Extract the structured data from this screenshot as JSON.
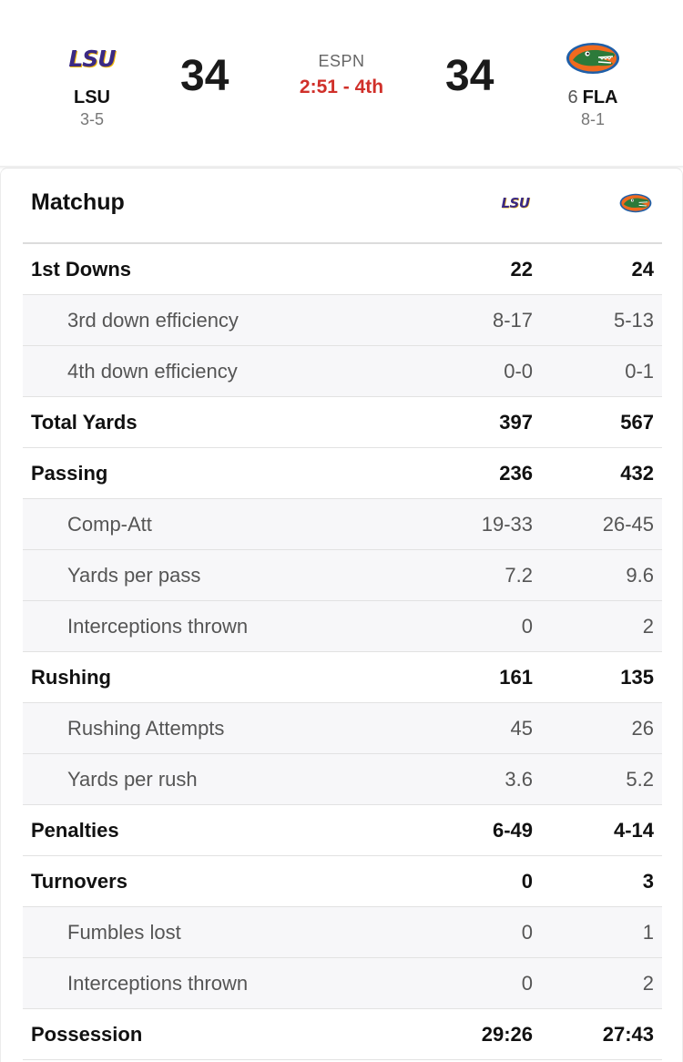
{
  "scoreboard": {
    "away": {
      "logo_text": "LSU",
      "name": "LSU",
      "record": "3-5",
      "score": "34",
      "icon": "lsu-logo"
    },
    "home": {
      "logo_text": "",
      "rank": "6",
      "name": "FLA",
      "record": "8-1",
      "score": "34",
      "icon": "gator-logo"
    },
    "network": "ESPN",
    "clock": "2:51 - 4th",
    "colors": {
      "clock": "#d0302a",
      "lsu_purple": "#3b2a83",
      "lsu_gold": "#f2b705",
      "gator_orange": "#f06a1e",
      "gator_blue": "#1f5fa8"
    }
  },
  "matchup": {
    "title": "Matchup",
    "away_logo_text": "LSU",
    "rows": [
      {
        "label": "1st Downs",
        "away": "22",
        "home": "24",
        "sub": false
      },
      {
        "label": "3rd down efficiency",
        "away": "8-17",
        "home": "5-13",
        "sub": true
      },
      {
        "label": "4th down efficiency",
        "away": "0-0",
        "home": "0-1",
        "sub": true
      },
      {
        "label": "Total Yards",
        "away": "397",
        "home": "567",
        "sub": false
      },
      {
        "label": "Passing",
        "away": "236",
        "home": "432",
        "sub": false
      },
      {
        "label": "Comp-Att",
        "away": "19-33",
        "home": "26-45",
        "sub": true
      },
      {
        "label": "Yards per pass",
        "away": "7.2",
        "home": "9.6",
        "sub": true
      },
      {
        "label": "Interceptions thrown",
        "away": "0",
        "home": "2",
        "sub": true
      },
      {
        "label": "Rushing",
        "away": "161",
        "home": "135",
        "sub": false
      },
      {
        "label": "Rushing Attempts",
        "away": "45",
        "home": "26",
        "sub": true
      },
      {
        "label": "Yards per rush",
        "away": "3.6",
        "home": "5.2",
        "sub": true
      },
      {
        "label": "Penalties",
        "away": "6-49",
        "home": "4-14",
        "sub": false
      },
      {
        "label": "Turnovers",
        "away": "0",
        "home": "3",
        "sub": false
      },
      {
        "label": "Fumbles lost",
        "away": "0",
        "home": "1",
        "sub": true
      },
      {
        "label": "Interceptions thrown",
        "away": "0",
        "home": "2",
        "sub": true
      },
      {
        "label": "Possession",
        "away": "29:26",
        "home": "27:43",
        "sub": false
      }
    ]
  }
}
